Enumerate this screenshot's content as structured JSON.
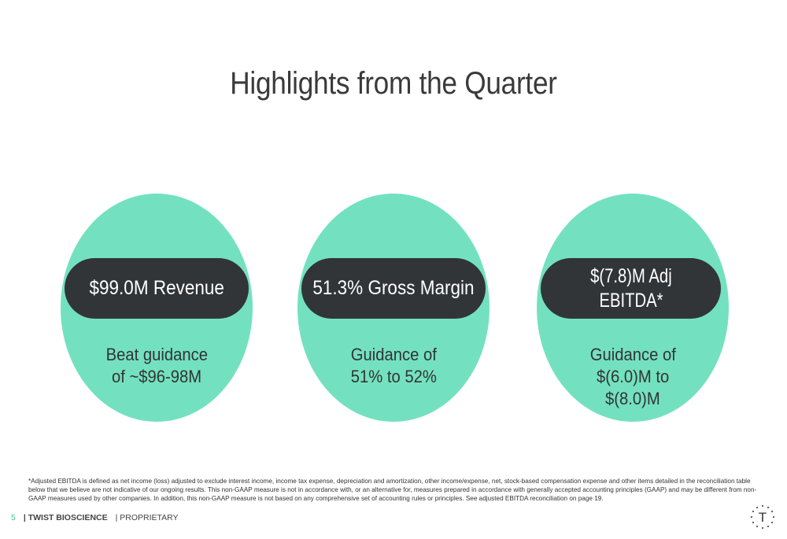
{
  "title": "Highlights from the Quarter",
  "highlights": [
    {
      "headline": "$99.0M Revenue",
      "detail_line1": "Beat guidance",
      "detail_line2": "of ~$96-98M",
      "detail_line3": ""
    },
    {
      "headline": "51.3% Gross Margin",
      "detail_line1": "Guidance of",
      "detail_line2": "51% to 52%",
      "detail_line3": ""
    },
    {
      "headline_line1": "$(7.8)M Adj",
      "headline_line2": "EBITDA*",
      "detail_line1": "Guidance of",
      "detail_line2": "$(6.0)M to",
      "detail_line3": "$(8.0)M"
    }
  ],
  "footnote": "*Adjusted EBITDA is defined as net income (loss) adjusted to exclude interest income, income tax expense, depreciation and amortization, other income/expense, net, stock-based compensation expense and other items detailed in the reconciliation table below that we believe are not indicative of our ongoing results. This non-GAAP measure is not in accordance with, or an alternative for, measures prepared in accordance with generally accepted accounting principles (GAAP) and may be different from non-GAAP measures used by other companies. In addition, this non-GAAP measure is not based on any comprehensive set of accounting rules or principles. See adjusted EBITDA reconciliation on page 19.",
  "footer": {
    "page_number": "5",
    "brand": "| TWIST BIOSCIENCE",
    "label": "| PROPRIETARY",
    "logo_letter": "T"
  },
  "colors": {
    "oval": "#73e1bf",
    "pill": "#323538",
    "accent": "#3fbf9a"
  }
}
